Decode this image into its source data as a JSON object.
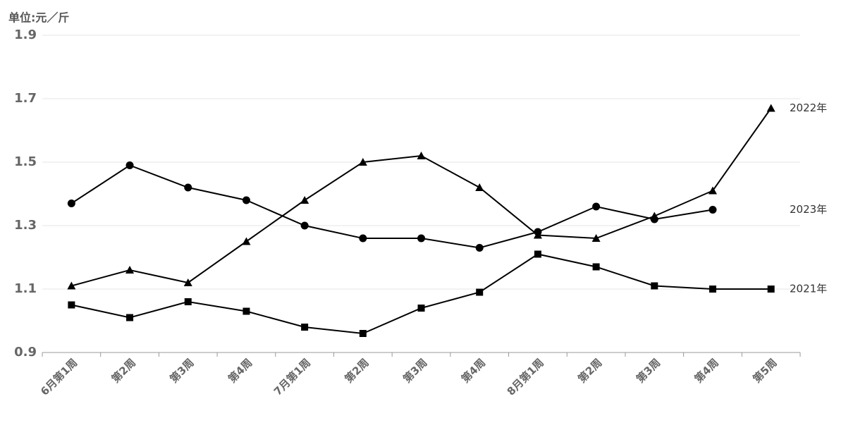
{
  "chart_data": {
    "type": "line",
    "y_label": "单位:元／斤",
    "categories": [
      "6月第1周",
      "第2周",
      "第3周",
      "第4周",
      "7月第1周",
      "第2周",
      "第3周",
      "第4周",
      "8月第1周",
      "第2周",
      "第3周",
      "第4周",
      "第5周"
    ],
    "series": [
      {
        "name": "2021年",
        "color": "#000000",
        "marker": "square",
        "values": [
          1.05,
          1.01,
          1.06,
          1.03,
          0.98,
          0.96,
          1.04,
          1.09,
          1.21,
          1.17,
          1.11,
          1.1,
          1.1
        ]
      },
      {
        "name": "2022年",
        "color": "#000000",
        "marker": "triangle",
        "values": [
          1.11,
          1.16,
          1.12,
          1.25,
          1.38,
          1.5,
          1.52,
          1.42,
          1.27,
          1.26,
          1.33,
          1.41,
          1.67
        ]
      },
      {
        "name": "2023年",
        "color": "#000000",
        "marker": "circle",
        "values": [
          1.37,
          1.49,
          1.42,
          1.38,
          1.3,
          1.26,
          1.26,
          1.23,
          1.28,
          1.36,
          1.32,
          1.35,
          null
        ]
      }
    ],
    "ylim": [
      0.9,
      1.9
    ],
    "yticks": [
      0.9,
      1.1,
      1.3,
      1.5,
      1.7,
      1.9
    ],
    "grid": true
  }
}
